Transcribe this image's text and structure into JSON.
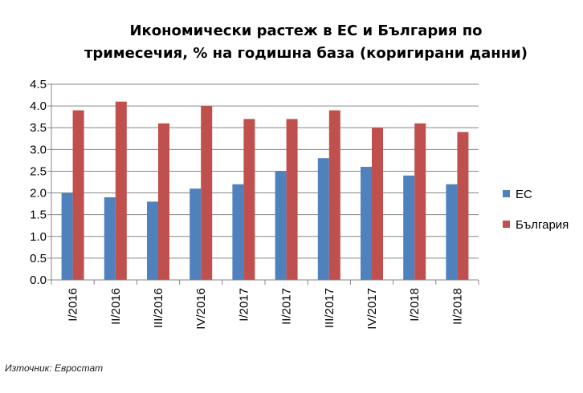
{
  "chart_data": {
    "type": "bar",
    "title": [
      "Икономически растеж в ЕС и България по",
      "тримесечия, % на годишна база (коригирани данни)"
    ],
    "categories": [
      "I/2016",
      "II/2016",
      "III/2016",
      "IV/2016",
      "I/2017",
      "II/2017",
      "III/2017",
      "IV/2017",
      "I/2018",
      "II/2018"
    ],
    "series": [
      {
        "name": "ЕС",
        "color": "#4F81BD",
        "values": [
          2.0,
          1.9,
          1.8,
          2.1,
          2.2,
          2.5,
          2.8,
          2.6,
          2.4,
          2.2
        ]
      },
      {
        "name": "България",
        "color": "#C0504D",
        "values": [
          3.9,
          4.1,
          3.6,
          4.0,
          3.7,
          3.7,
          3.9,
          3.5,
          3.6,
          3.4
        ]
      }
    ],
    "ylim": [
      0,
      4.5
    ],
    "yticks": [
      "0.0",
      "0.5",
      "1.0",
      "1.5",
      "2.0",
      "2.5",
      "3.0",
      "3.5",
      "4.0",
      "4.5"
    ],
    "grid": true,
    "legend": "right"
  },
  "source": "Източник: Евростат"
}
